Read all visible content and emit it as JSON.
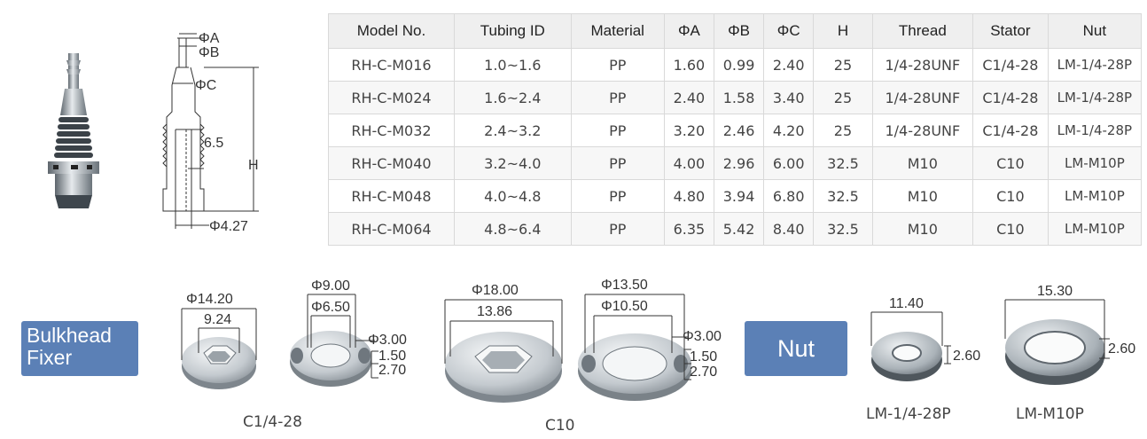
{
  "table": {
    "headers": [
      "Model No.",
      "Tubing ID",
      "Material",
      "ΦA",
      "ΦB",
      "ΦC",
      "H",
      "Thread",
      "Stator",
      "Nut"
    ],
    "rows": [
      [
        "RH-C-M016",
        "1.0~1.6",
        "PP",
        "1.60",
        "0.99",
        "2.40",
        "25",
        "1/4-28UNF",
        "C1/4-28",
        "LM-1/4-28P"
      ],
      [
        "RH-C-M024",
        "1.6~2.4",
        "PP",
        "2.40",
        "1.58",
        "3.40",
        "25",
        "1/4-28UNF",
        "C1/4-28",
        "LM-1/4-28P"
      ],
      [
        "RH-C-M032",
        "2.4~3.2",
        "PP",
        "3.20",
        "2.46",
        "4.20",
        "25",
        "1/4-28UNF",
        "C1/4-28",
        "LM-1/4-28P"
      ],
      [
        "RH-C-M040",
        "3.2~4.0",
        "PP",
        "4.00",
        "2.96",
        "6.00",
        "32.5",
        "M10",
        "C10",
        "LM-M10P"
      ],
      [
        "RH-C-M048",
        "4.0~4.8",
        "PP",
        "4.80",
        "3.94",
        "6.80",
        "32.5",
        "M10",
        "C10",
        "LM-M10P"
      ],
      [
        "RH-C-M064",
        "4.8~6.4",
        "PP",
        "6.35",
        "5.42",
        "8.40",
        "32.5",
        "M10",
        "C10",
        "LM-M10P"
      ]
    ]
  },
  "drawing": {
    "phi_a": "ΦA",
    "phi_b": "ΦB",
    "phi_c": "ΦC",
    "depth": "6.5",
    "height": "H",
    "base": "Φ4.27"
  },
  "bulkhead": {
    "badge_line1": "Bulkhead",
    "badge_line2": "Fixer",
    "c14_outer": "Φ14.20",
    "c14_hex": "9.24",
    "c14_washer_outer": "Φ9.00",
    "c14_washer_inner": "Φ6.50",
    "c14_pin": "Φ3.00",
    "c14_t1": "1.50",
    "c14_t2": "2.70",
    "c14_caption": "C1/4-28",
    "c10_outer": "Φ18.00",
    "c10_hex": "13.86",
    "c10_washer_outer": "Φ13.50",
    "c10_washer_inner": "Φ10.50",
    "c10_pin": "Φ3.00",
    "c10_t1": "1.50",
    "c10_t2": "2.70",
    "c10_caption": "C10"
  },
  "nut": {
    "badge": "Nut",
    "small_width": "11.40",
    "small_height": "2.60",
    "small_caption": "LM-1/4-28P",
    "large_width": "15.30",
    "large_height": "2.60",
    "large_caption": "LM-M10P"
  },
  "colors": {
    "badge_bg": "#5b80b6",
    "metal_light": "#d9dee2",
    "metal_dark": "#8a9299"
  }
}
